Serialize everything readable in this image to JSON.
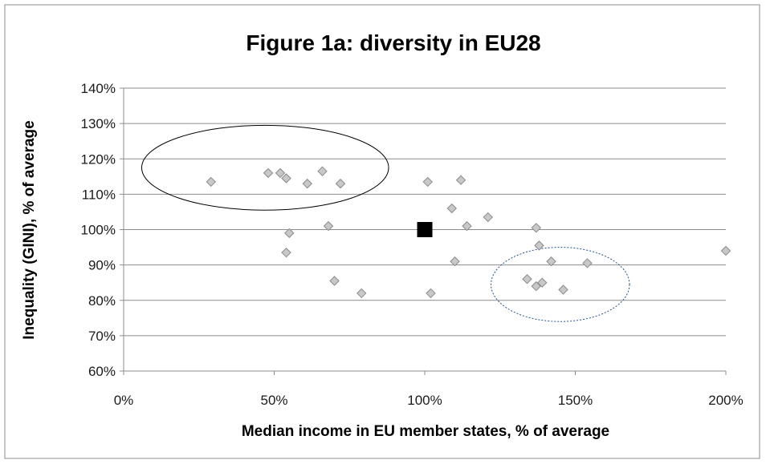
{
  "chart_data": {
    "type": "scatter",
    "title": "Figure 1a: diversity in EU28",
    "xlabel": "Median income in EU member states, % of average",
    "ylabel": "Inequality (GINI), % of average",
    "xlim": [
      0,
      200
    ],
    "ylim": [
      60,
      140
    ],
    "x_ticks": [
      0,
      50,
      100,
      150,
      200
    ],
    "x_tick_labels": [
      "0%",
      "50%",
      "100%",
      "150%",
      "200%"
    ],
    "y_ticks": [
      60,
      70,
      80,
      90,
      100,
      110,
      120,
      130,
      140
    ],
    "y_tick_labels": [
      "60%",
      "70%",
      "80%",
      "90%",
      "100%",
      "110%",
      "120%",
      "130%",
      "140%"
    ],
    "grid": "horizontal",
    "legend": "none",
    "series": [
      {
        "marker": "diamond",
        "color": "#c8c8c8",
        "stroke": "#8a8a8a",
        "points": [
          [
            29,
            113.5
          ],
          [
            48,
            116
          ],
          [
            52,
            116
          ],
          [
            54,
            114.5
          ],
          [
            61,
            113
          ],
          [
            66,
            116.5
          ],
          [
            72,
            113
          ],
          [
            55,
            99
          ],
          [
            54,
            93.5
          ],
          [
            68,
            101
          ],
          [
            70,
            85.5
          ],
          [
            79,
            82
          ],
          [
            101,
            113.5
          ],
          [
            102,
            82
          ],
          [
            109,
            106
          ],
          [
            110,
            91
          ],
          [
            112,
            114
          ],
          [
            114,
            101
          ],
          [
            121,
            103.5
          ],
          [
            137,
            100.5
          ],
          [
            138,
            95.5
          ],
          [
            134,
            86
          ],
          [
            137,
            84
          ],
          [
            139,
            85
          ],
          [
            142,
            91
          ],
          [
            146,
            83
          ],
          [
            154,
            90.5
          ],
          [
            200,
            94
          ]
        ]
      },
      {
        "marker": "square",
        "color": "#000000",
        "points": [
          [
            100,
            100
          ]
        ]
      }
    ],
    "annotations": [
      {
        "shape": "ellipse",
        "style": "solid",
        "color": "#000000",
        "center": [
          47,
          117.5
        ],
        "radius": [
          41,
          12
        ]
      },
      {
        "shape": "ellipse",
        "style": "dotted",
        "color": "#1f4e9c",
        "center": [
          145,
          84.5
        ],
        "radius": [
          23,
          10.5
        ]
      }
    ]
  }
}
